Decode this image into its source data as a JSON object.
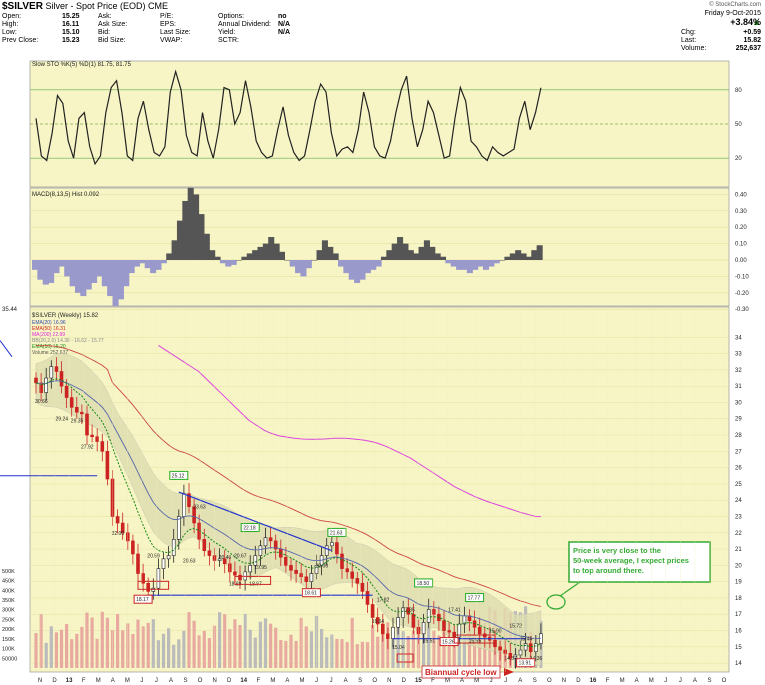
{
  "header": {
    "symbol": "$SILVER",
    "description": "Silver - Spot Price (EOD) CME",
    "watermark": "© StockCharts.com",
    "date": "Friday  9-Oct-2015",
    "change_pct": "+3.84%",
    "change_label": "Chg:",
    "change": "+0.59",
    "last_label": "Last:",
    "last": "15.82",
    "volume_label": "Volume:",
    "volume": "252,637",
    "quote": [
      {
        "label": "Open:",
        "value": "15.25"
      },
      {
        "label": "High:",
        "value": "16.11"
      },
      {
        "label": "Low:",
        "value": "15.10"
      },
      {
        "label": "Prev Close:",
        "value": "15.23"
      }
    ],
    "quote2": [
      "Ask:",
      "Ask Size:",
      "Bid:",
      "Bid Size:"
    ],
    "quote3": [
      "P/E:",
      "EPS:",
      "Last Size:",
      "VWAP:"
    ],
    "quote4": [
      {
        "label": "Options:",
        "value": "no"
      },
      {
        "label": "Annual Dividend:",
        "value": "N/A"
      },
      {
        "label": "Yield:",
        "value": "N/A"
      },
      {
        "label": "SCTR:",
        "value": ""
      }
    ]
  },
  "chart_data": {
    "type": "line",
    "sto": {
      "label": "Slow STO %K(5) %D(1) 81.75, 81.75",
      "levels": [
        80,
        50,
        20
      ],
      "values": [
        55,
        22,
        18,
        42,
        75,
        68,
        35,
        20,
        55,
        60,
        30,
        15,
        22,
        60,
        82,
        88,
        60,
        22,
        18,
        55,
        70,
        45,
        25,
        22,
        30,
        78,
        96,
        80,
        40,
        25,
        22,
        60,
        35,
        20,
        45,
        82,
        80,
        50,
        60,
        88,
        65,
        35,
        25,
        20,
        22,
        45,
        65,
        40,
        25,
        18,
        22,
        45,
        70,
        85,
        78,
        42,
        22,
        28,
        30,
        25,
        45,
        78,
        60,
        30,
        22,
        20,
        35,
        60,
        80,
        92,
        55,
        30,
        45,
        70,
        60,
        40,
        20,
        22,
        55,
        82,
        70,
        35,
        30,
        22,
        18,
        30,
        25,
        22,
        25,
        28,
        55,
        70,
        45,
        60,
        81.75
      ]
    },
    "macd": {
      "label": "MACD(8,13,5) Hist 0.092",
      "ticks": [
        "0.40",
        "0.30",
        "0.20",
        "0.10",
        "0.00",
        "-0.10",
        "-0.20",
        "-0.30"
      ],
      "values": [
        -0.06,
        -0.12,
        -0.15,
        -0.14,
        -0.08,
        -0.04,
        -0.1,
        -0.16,
        -0.2,
        -0.22,
        -0.18,
        -0.14,
        -0.1,
        -0.16,
        -0.22,
        -0.28,
        -0.24,
        -0.16,
        -0.08,
        -0.04,
        -0.02,
        -0.05,
        -0.08,
        -0.06,
        -0.02,
        0.04,
        0.12,
        0.24,
        0.36,
        0.44,
        0.4,
        0.28,
        0.16,
        0.06,
        0.02,
        -0.02,
        -0.04,
        -0.03,
        0.0,
        0.02,
        0.04,
        0.06,
        0.08,
        0.1,
        0.14,
        0.1,
        0.05,
        0.0,
        -0.04,
        -0.08,
        -0.1,
        -0.05,
        0.0,
        0.06,
        0.12,
        0.08,
        0.04,
        -0.04,
        -0.08,
        -0.12,
        -0.14,
        -0.12,
        -0.08,
        -0.06,
        -0.04,
        0.02,
        0.06,
        0.1,
        0.14,
        0.1,
        0.06,
        0.04,
        0.08,
        0.12,
        0.08,
        0.04,
        0.02,
        -0.02,
        -0.04,
        -0.06,
        -0.06,
        -0.08,
        -0.06,
        -0.04,
        -0.06,
        -0.04,
        -0.02,
        0.0,
        0.02,
        0.04,
        0.06,
        0.04,
        0.02,
        0.06,
        0.09
      ]
    },
    "price": {
      "label": "$SILVER (Weekly) 15.82",
      "legend": [
        {
          "text": "EMA(20) 16.96",
          "color": "#3344aa"
        },
        {
          "text": "EMA(50) 16.31",
          "color": "#cc2222"
        },
        {
          "text": "MA(200) 22.99",
          "color": "#dd22dd"
        },
        {
          "text": "BB(20,2.0) 14.38 - 16.62 - 15.77",
          "color": "#888888"
        },
        {
          "text": "EMA(10) 15.20",
          "color": "#118811"
        },
        {
          "text": "Volume 252,637",
          "color": "#555555"
        }
      ],
      "top_label": "35.44",
      "ticks": [
        14,
        15,
        16,
        17,
        18,
        19,
        20,
        21,
        22,
        23,
        24,
        25,
        26,
        27,
        28,
        29,
        30,
        31,
        32,
        33,
        34
      ],
      "ylim": [
        13.7,
        35.0
      ],
      "closes": [
        31.2,
        30.6,
        31.5,
        32.2,
        31.9,
        31.0,
        30.3,
        29.7,
        29.4,
        29.3,
        28.0,
        27.9,
        27.6,
        27.0,
        25.3,
        23.0,
        22.6,
        22.0,
        21.5,
        20.7,
        19.5,
        18.9,
        18.4,
        18.6,
        19.8,
        20.4,
        20.6,
        21.6,
        23.0,
        24.4,
        23.6,
        22.6,
        21.6,
        20.9,
        20.6,
        20.3,
        20.4,
        20.1,
        19.6,
        19.4,
        19.1,
        19.6,
        20.0,
        20.6,
        21.2,
        21.7,
        21.5,
        21.0,
        20.5,
        20.0,
        19.7,
        19.5,
        19.3,
        19.0,
        19.5,
        20.0,
        20.6,
        21.2,
        21.4,
        20.7,
        19.8,
        19.6,
        19.2,
        18.9,
        18.4,
        17.6,
        16.8,
        16.4,
        15.8,
        15.5,
        16.2,
        16.8,
        17.4,
        17.0,
        16.2,
        15.8,
        16.5,
        17.3,
        17.0,
        16.6,
        16.0,
        15.9,
        15.6,
        16.4,
        16.9,
        16.6,
        16.2,
        15.8,
        15.6,
        15.4,
        15.0,
        14.8,
        14.6,
        14.3,
        14.5,
        14.8,
        15.2,
        14.7,
        15.2,
        15.8
      ],
      "ma200": [
        33.5,
        33.3,
        33.1,
        32.9,
        32.7,
        32.5,
        32.3,
        32.1,
        31.9,
        31.6,
        31.3,
        31.0,
        30.7,
        30.4,
        30.1,
        29.8,
        29.5,
        29.2,
        28.9,
        28.7,
        28.5,
        28.3,
        28.15,
        28.05,
        27.95,
        27.9,
        27.85,
        27.8,
        27.77,
        27.75,
        27.74,
        27.74,
        27.75,
        27.76,
        27.78,
        27.8,
        27.8,
        27.8,
        27.78,
        27.75,
        27.72,
        27.68,
        27.62,
        27.55,
        27.45,
        27.33,
        27.2,
        27.05,
        26.9,
        26.75,
        26.6,
        26.4,
        26.2,
        26.0,
        25.8,
        25.6,
        25.4,
        25.2,
        25.0,
        24.8,
        24.65,
        24.5,
        24.35,
        24.2,
        24.08,
        23.96,
        23.85,
        23.75,
        23.65,
        23.55,
        23.45,
        23.35,
        23.25,
        23.16,
        23.08,
        23.0,
        22.99
      ],
      "annotations": [
        {
          "text": "30.66",
          "i": 1,
          "v": 30.1
        },
        {
          "text": "29.24",
          "i": 5,
          "v": 29.0
        },
        {
          "text": "29.35",
          "i": 8,
          "v": 28.9
        },
        {
          "text": "27.92",
          "i": 10,
          "v": 27.3
        },
        {
          "text": "22.00",
          "i": 16,
          "v": 22.0
        },
        {
          "text": "20.59",
          "i": 23,
          "v": 20.6
        },
        {
          "text": "20.63",
          "i": 30,
          "v": 20.3
        },
        {
          "text": "23.63",
          "i": 32,
          "v": 23.6
        },
        {
          "text": "20.46",
          "i": 37,
          "v": 20.5
        },
        {
          "text": "20.67",
          "i": 40,
          "v": 20.6
        },
        {
          "text": "19.95",
          "i": 44,
          "v": 19.9
        },
        {
          "text": "18.89",
          "i": 39,
          "v": 18.9
        },
        {
          "text": "18.97",
          "i": 43,
          "v": 18.9
        },
        {
          "text": "20.00",
          "i": 56,
          "v": 20.0
        },
        {
          "text": "17.82",
          "i": 68,
          "v": 17.9
        },
        {
          "text": "17.35",
          "i": 73,
          "v": 17.3
        },
        {
          "text": "17.41",
          "i": 82,
          "v": 17.3
        },
        {
          "text": "16.64",
          "i": 67,
          "v": 16.6
        },
        {
          "text": "15.51",
          "i": 77,
          "v": 15.4
        },
        {
          "text": "15.55",
          "i": 86,
          "v": 15.4
        },
        {
          "text": "15.04",
          "i": 71,
          "v": 15.0
        },
        {
          "text": "15.90",
          "i": 90,
          "v": 16.0
        },
        {
          "text": "15.72",
          "i": 94,
          "v": 16.3
        },
        {
          "text": "15.44",
          "i": 96,
          "v": 15.5
        },
        {
          "text": "14.37",
          "i": 93,
          "v": 14.3
        },
        {
          "text": "14.36",
          "i": 98,
          "v": 14.3
        }
      ],
      "boxed_highs": [
        {
          "text": "25.12",
          "i": 28,
          "v": 25.4
        },
        {
          "text": "22.18",
          "i": 42,
          "v": 22.2
        },
        {
          "text": "21.63",
          "i": 59,
          "v": 21.9
        },
        {
          "text": "18.50",
          "i": 76,
          "v": 18.8
        },
        {
          "text": "17.77",
          "i": 86,
          "v": 17.9
        }
      ],
      "boxed_lows": [
        {
          "text": "18.17",
          "i": 21,
          "v": 17.8
        },
        {
          "text": "18.61",
          "i": 54,
          "v": 18.2
        },
        {
          "text": "15.26",
          "i": 81,
          "v": 15.2
        },
        {
          "text": "13.91",
          "i": 96,
          "v": 13.9
        }
      ],
      "callout": "Price is very close to the 50-week average, I expect prices to top around there.",
      "cycle_label": "Biannual cycle low"
    },
    "volume": {
      "ticks": [
        "500K",
        "450K",
        "400K",
        "350K",
        "300K",
        "250K",
        "200K",
        "150K",
        "100K",
        "50000"
      ],
      "ymax": 520000
    },
    "x_axis": [
      "N",
      "D",
      "13",
      "F",
      "M",
      "A",
      "M",
      "J",
      "J",
      "A",
      "S",
      "O",
      "N",
      "D",
      "14",
      "F",
      "M",
      "A",
      "M",
      "J",
      "J",
      "A",
      "S",
      "O",
      "N",
      "D",
      "15",
      "F",
      "M",
      "A",
      "M",
      "J",
      "J",
      "A",
      "S",
      "O",
      "N",
      "D",
      "16",
      "F",
      "M",
      "A",
      "M",
      "J",
      "J",
      "A",
      "S",
      "O"
    ],
    "colors": {
      "panel": "#f7f5c5",
      "up": "#222222",
      "down": "#cc2222",
      "grid": "#dddd99",
      "sto_line": "#222222",
      "blue": "#2233cc",
      "callout": "#33aa33"
    }
  }
}
